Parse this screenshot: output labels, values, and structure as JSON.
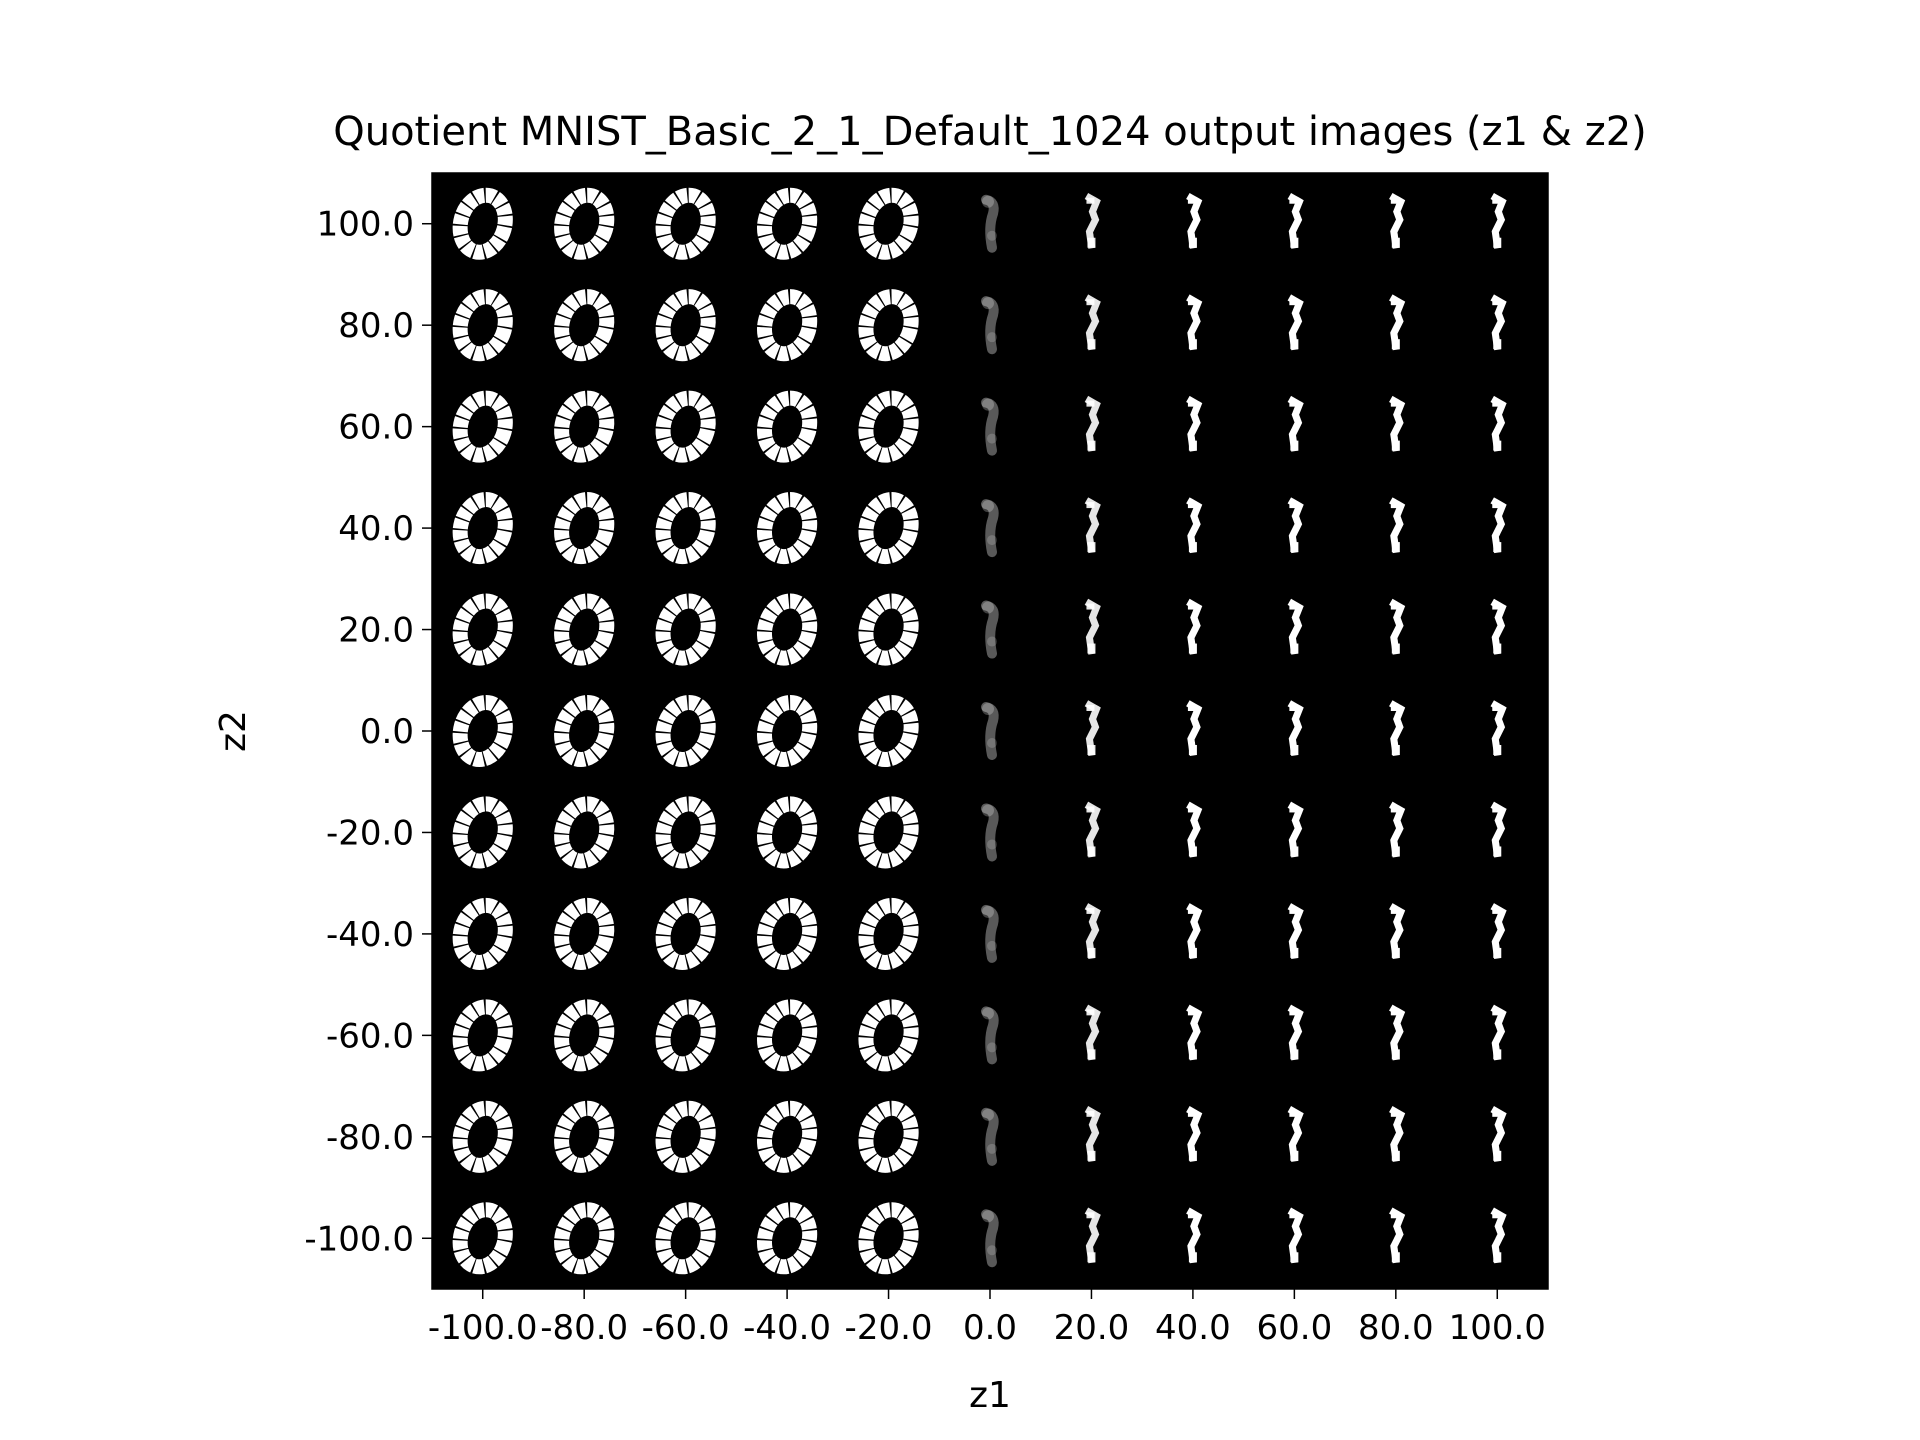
{
  "chart_data": {
    "type": "heatmap",
    "title": "Quotient MNIST_Basic_2_1_Default_1024 output images (z1 & z2)",
    "xlabel": "z1",
    "ylabel": "z2",
    "x_ticks": [
      "-100.0",
      "-80.0",
      "-60.0",
      "-40.0",
      "-20.0",
      "0.0",
      "20.0",
      "40.0",
      "60.0",
      "80.0",
      "100.0"
    ],
    "y_ticks": [
      "100.0",
      "80.0",
      "60.0",
      "40.0",
      "20.0",
      "0.0",
      "-20.0",
      "-40.0",
      "-60.0",
      "-80.0",
      "-100.0"
    ],
    "x_values": [
      -100,
      -80,
      -60,
      -40,
      -20,
      0,
      20,
      40,
      60,
      80,
      100
    ],
    "y_values": [
      100,
      80,
      60,
      40,
      20,
      0,
      -20,
      -40,
      -60,
      -80,
      -100
    ],
    "xlim": [
      -110,
      110
    ],
    "ylim": [
      -110,
      110
    ],
    "grid": false,
    "background": "#000000",
    "cell_content": "generated digit image",
    "columns_by_z1": [
      {
        "z1": -100,
        "digit": "zero",
        "intensity": 1.0
      },
      {
        "z1": -80,
        "digit": "zero",
        "intensity": 1.0
      },
      {
        "z1": -60,
        "digit": "zero",
        "intensity": 1.0
      },
      {
        "z1": -40,
        "digit": "zero",
        "intensity": 1.0
      },
      {
        "z1": -20,
        "digit": "zero",
        "intensity": 1.0
      },
      {
        "z1": 0,
        "digit": "faint-one",
        "intensity": 0.35
      },
      {
        "z1": 20,
        "digit": "one",
        "intensity": 0.9
      },
      {
        "z1": 40,
        "digit": "one",
        "intensity": 1.0
      },
      {
        "z1": 60,
        "digit": "one",
        "intensity": 1.0
      },
      {
        "z1": 80,
        "digit": "one",
        "intensity": 1.0
      },
      {
        "z1": 100,
        "digit": "one",
        "intensity": 1.0
      }
    ]
  }
}
